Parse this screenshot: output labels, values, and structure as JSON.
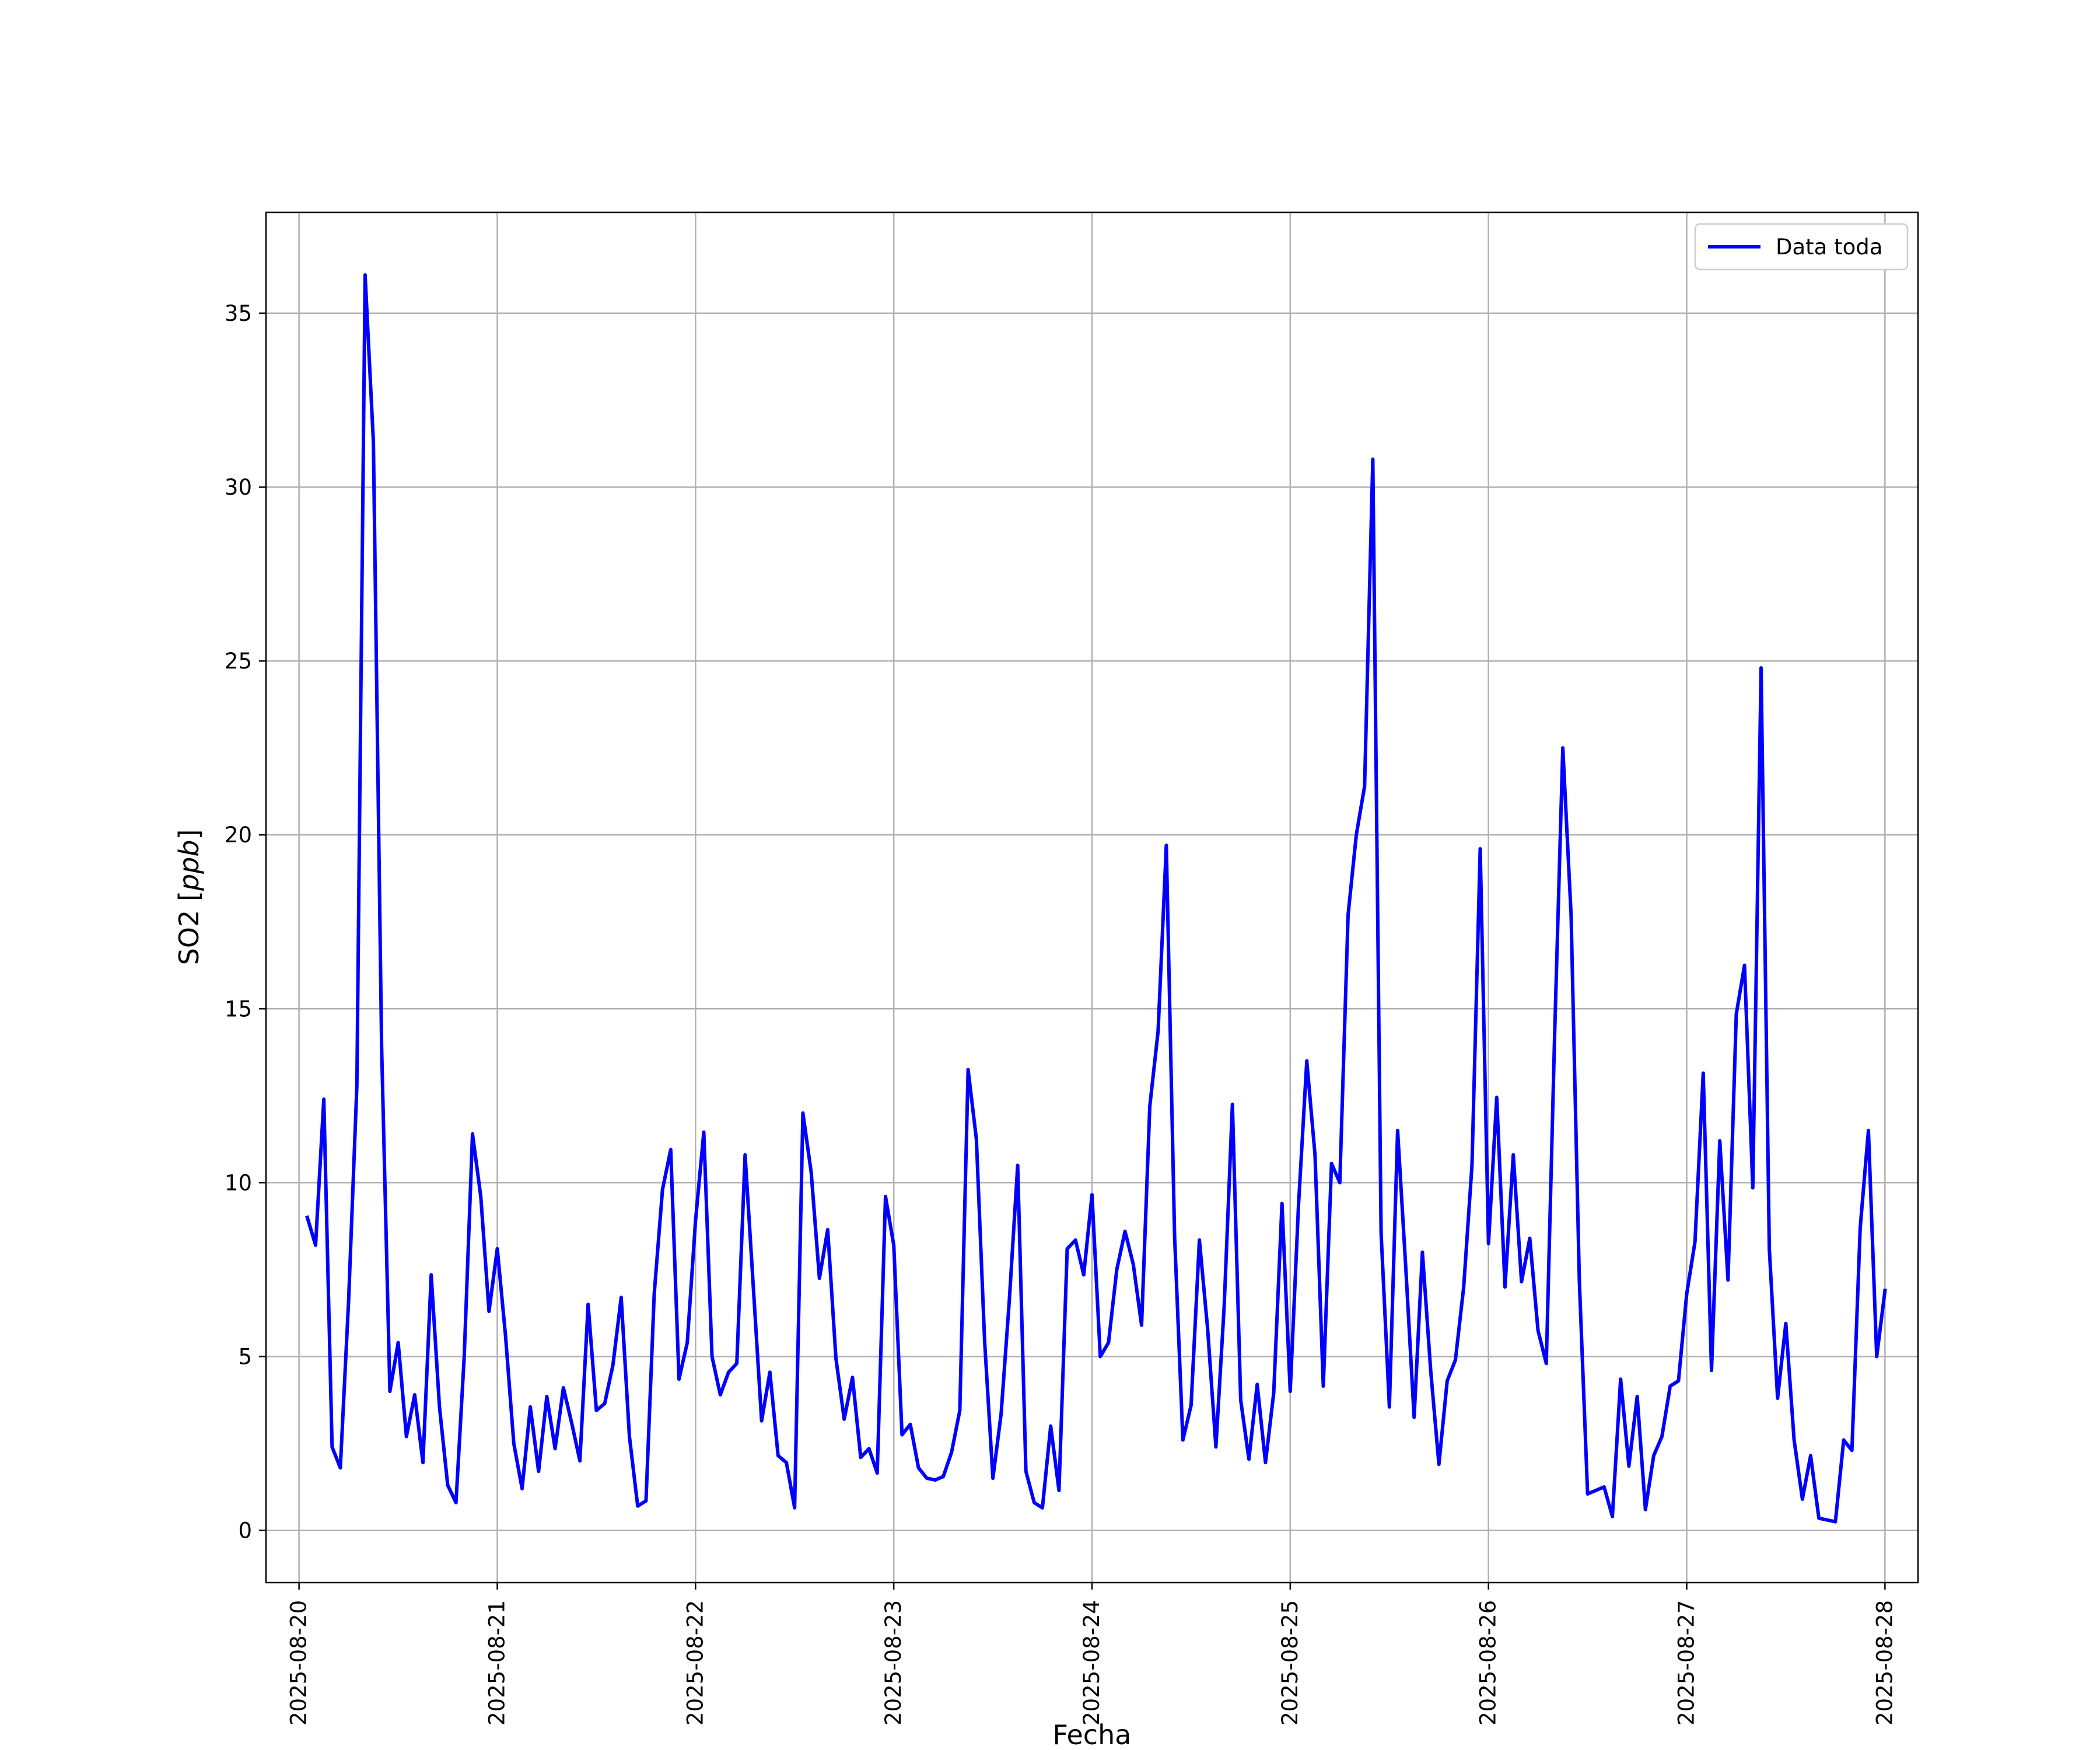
{
  "chart_data": {
    "type": "line",
    "xlabel": "Fecha",
    "ylabel": "SO2 [ppb]",
    "ylabel_parts": {
      "text": "SO2 ",
      "unit": "ppb"
    },
    "xlim": [
      "2025-08-19T20:00",
      "2025-08-28T04:00"
    ],
    "ylim": [
      -1.5,
      37.9
    ],
    "x_ticks": [
      "2025-08-20",
      "2025-08-21",
      "2025-08-22",
      "2025-08-23",
      "2025-08-24",
      "2025-08-25",
      "2025-08-26",
      "2025-08-27",
      "2025-08-28"
    ],
    "y_ticks": [
      0,
      5,
      10,
      15,
      20,
      25,
      30,
      35
    ],
    "grid": true,
    "legend_position": "top-right",
    "series_color": "#0000ff",
    "series": [
      {
        "name": "Data toda",
        "x": [
          "2025-08-20T01:00",
          "2025-08-20T02:00",
          "2025-08-20T03:00",
          "2025-08-20T04:00",
          "2025-08-20T05:00",
          "2025-08-20T06:00",
          "2025-08-20T07:00",
          "2025-08-20T08:00",
          "2025-08-20T09:00",
          "2025-08-20T10:00",
          "2025-08-20T11:00",
          "2025-08-20T12:00",
          "2025-08-20T13:00",
          "2025-08-20T14:00",
          "2025-08-20T15:00",
          "2025-08-20T16:00",
          "2025-08-20T17:00",
          "2025-08-20T18:00",
          "2025-08-20T19:00",
          "2025-08-20T20:00",
          "2025-08-20T21:00",
          "2025-08-20T22:00",
          "2025-08-20T23:00",
          "2025-08-21T00:00",
          "2025-08-21T01:00",
          "2025-08-21T02:00",
          "2025-08-21T03:00",
          "2025-08-21T04:00",
          "2025-08-21T05:00",
          "2025-08-21T06:00",
          "2025-08-21T07:00",
          "2025-08-21T08:00",
          "2025-08-21T09:00",
          "2025-08-21T10:00",
          "2025-08-21T11:00",
          "2025-08-21T12:00",
          "2025-08-21T13:00",
          "2025-08-21T14:00",
          "2025-08-21T15:00",
          "2025-08-21T16:00",
          "2025-08-21T17:00",
          "2025-08-21T18:00",
          "2025-08-21T19:00",
          "2025-08-21T20:00",
          "2025-08-21T21:00",
          "2025-08-21T22:00",
          "2025-08-21T23:00",
          "2025-08-22T00:00",
          "2025-08-22T01:00",
          "2025-08-22T02:00",
          "2025-08-22T03:00",
          "2025-08-22T04:00",
          "2025-08-22T05:00",
          "2025-08-22T06:00",
          "2025-08-22T07:00",
          "2025-08-22T08:00",
          "2025-08-22T09:00",
          "2025-08-22T10:00",
          "2025-08-22T11:00",
          "2025-08-22T12:00",
          "2025-08-22T13:00",
          "2025-08-22T14:00",
          "2025-08-22T15:00",
          "2025-08-22T16:00",
          "2025-08-22T17:00",
          "2025-08-22T18:00",
          "2025-08-22T19:00",
          "2025-08-22T20:00",
          "2025-08-22T21:00",
          "2025-08-22T22:00",
          "2025-08-22T23:00",
          "2025-08-23T00:00",
          "2025-08-23T01:00",
          "2025-08-23T02:00",
          "2025-08-23T03:00",
          "2025-08-23T04:00",
          "2025-08-23T05:00",
          "2025-08-23T06:00",
          "2025-08-23T07:00",
          "2025-08-23T08:00",
          "2025-08-23T09:00",
          "2025-08-23T10:00",
          "2025-08-23T11:00",
          "2025-08-23T12:00",
          "2025-08-23T13:00",
          "2025-08-23T14:00",
          "2025-08-23T15:00",
          "2025-08-23T16:00",
          "2025-08-23T17:00",
          "2025-08-23T18:00",
          "2025-08-23T19:00",
          "2025-08-23T20:00",
          "2025-08-23T21:00",
          "2025-08-23T22:00",
          "2025-08-23T23:00",
          "2025-08-24T00:00",
          "2025-08-24T01:00",
          "2025-08-24T02:00",
          "2025-08-24T03:00",
          "2025-08-24T04:00",
          "2025-08-24T05:00",
          "2025-08-24T06:00",
          "2025-08-24T07:00",
          "2025-08-24T08:00",
          "2025-08-24T09:00",
          "2025-08-24T10:00",
          "2025-08-24T11:00",
          "2025-08-24T12:00",
          "2025-08-24T13:00",
          "2025-08-24T14:00",
          "2025-08-24T15:00",
          "2025-08-24T16:00",
          "2025-08-24T17:00",
          "2025-08-24T18:00",
          "2025-08-24T19:00",
          "2025-08-24T20:00",
          "2025-08-24T21:00",
          "2025-08-24T22:00",
          "2025-08-24T23:00",
          "2025-08-25T00:00",
          "2025-08-25T01:00",
          "2025-08-25T02:00",
          "2025-08-25T03:00",
          "2025-08-25T04:00",
          "2025-08-25T05:00",
          "2025-08-25T06:00",
          "2025-08-25T07:00",
          "2025-08-25T08:00",
          "2025-08-25T09:00",
          "2025-08-25T10:00",
          "2025-08-25T11:00",
          "2025-08-25T12:00",
          "2025-08-25T13:00",
          "2025-08-25T14:00",
          "2025-08-25T15:00",
          "2025-08-25T16:00",
          "2025-08-25T17:00",
          "2025-08-25T18:00",
          "2025-08-25T19:00",
          "2025-08-25T20:00",
          "2025-08-25T21:00",
          "2025-08-25T22:00",
          "2025-08-25T23:00",
          "2025-08-26T00:00",
          "2025-08-26T01:00",
          "2025-08-26T02:00",
          "2025-08-26T03:00",
          "2025-08-26T04:00",
          "2025-08-26T05:00",
          "2025-08-26T06:00",
          "2025-08-26T07:00",
          "2025-08-26T08:00",
          "2025-08-26T09:00",
          "2025-08-26T10:00",
          "2025-08-26T11:00",
          "2025-08-26T12:00",
          "2025-08-26T14:00",
          "2025-08-26T15:00",
          "2025-08-26T16:00",
          "2025-08-26T17:00",
          "2025-08-26T18:00",
          "2025-08-26T19:00",
          "2025-08-26T20:00",
          "2025-08-26T21:00",
          "2025-08-26T22:00",
          "2025-08-26T23:00",
          "2025-08-27T00:00",
          "2025-08-27T01:00",
          "2025-08-27T02:00",
          "2025-08-27T03:00",
          "2025-08-27T04:00",
          "2025-08-27T05:00",
          "2025-08-27T06:00",
          "2025-08-27T07:00",
          "2025-08-27T08:00",
          "2025-08-27T09:00",
          "2025-08-27T10:00",
          "2025-08-27T11:00",
          "2025-08-27T12:00",
          "2025-08-27T13:00",
          "2025-08-27T14:00",
          "2025-08-27T15:00",
          "2025-08-27T16:00",
          "2025-08-27T18:00",
          "2025-08-27T19:00",
          "2025-08-27T20:00",
          "2025-08-27T21:00",
          "2025-08-27T22:00",
          "2025-08-27T23:00",
          "2025-08-28T00:00"
        ],
        "y": [
          9.0,
          8.2,
          12.4,
          2.4,
          1.8,
          6.6,
          12.8,
          36.1,
          31.3,
          13.9,
          4.0,
          5.4,
          2.7,
          3.9,
          1.95,
          7.35,
          3.55,
          1.3,
          0.8,
          5.0,
          11.4,
          9.6,
          6.3,
          8.1,
          5.6,
          2.5,
          1.2,
          3.55,
          1.7,
          3.85,
          2.35,
          4.1,
          3.1,
          2.0,
          6.5,
          3.45,
          3.65,
          4.75,
          6.7,
          2.7,
          0.7,
          0.85,
          6.8,
          9.8,
          10.95,
          4.35,
          5.4,
          8.9,
          11.45,
          5.0,
          3.9,
          4.55,
          4.8,
          10.8,
          7.0,
          3.15,
          4.55,
          2.15,
          1.95,
          0.65,
          12.0,
          10.3,
          7.25,
          8.65,
          4.95,
          3.2,
          4.4,
          2.1,
          2.35,
          1.65,
          9.6,
          8.2,
          2.75,
          3.05,
          1.8,
          1.5,
          1.45,
          1.55,
          2.25,
          3.45,
          13.25,
          11.25,
          5.45,
          1.5,
          3.35,
          6.65,
          10.5,
          1.7,
          0.8,
          0.65,
          3.0,
          1.15,
          8.1,
          8.35,
          7.35,
          9.65,
          5.0,
          5.4,
          7.5,
          8.6,
          7.65,
          5.9,
          12.2,
          14.35,
          19.7,
          8.45,
          2.6,
          3.6,
          8.35,
          5.8,
          2.4,
          6.45,
          12.25,
          3.75,
          2.05,
          4.2,
          1.95,
          3.95,
          9.4,
          4.0,
          9.35,
          13.5,
          10.8,
          4.15,
          10.55,
          10.0,
          17.7,
          20.0,
          21.4,
          30.8,
          8.55,
          3.55,
          11.5,
          7.5,
          3.25,
          8.0,
          4.6,
          1.9,
          4.3,
          4.9,
          7.0,
          10.5,
          19.6,
          8.25,
          12.45,
          7.0,
          10.8,
          7.15,
          8.4,
          5.75,
          4.8,
          14.2,
          22.5,
          17.7,
          7.2,
          1.05,
          1.25,
          0.4,
          4.35,
          1.85,
          3.85,
          0.6,
          2.15,
          2.7,
          4.15,
          4.3,
          6.8,
          8.3,
          13.15,
          4.6,
          11.2,
          7.2,
          14.85,
          16.25,
          9.85,
          24.8,
          8.1,
          3.8,
          5.95,
          2.6,
          0.9,
          2.15,
          0.35,
          0.25,
          2.6,
          2.3,
          8.7,
          11.5,
          5.0,
          6.9
        ]
      }
    ]
  }
}
